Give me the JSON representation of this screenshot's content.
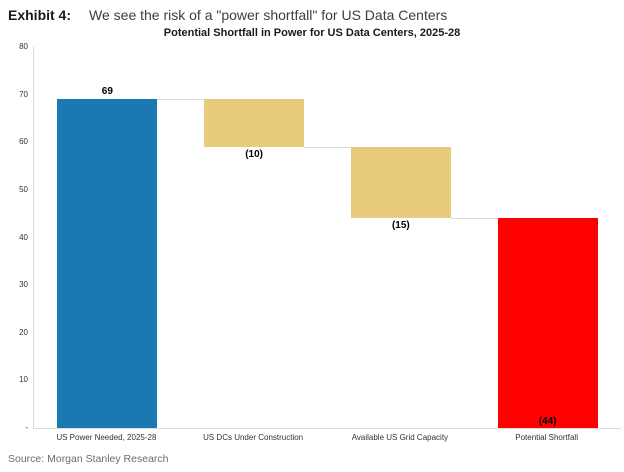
{
  "header": {
    "exhibit_label": "Exhibit 4:",
    "title": "We see the risk of a \"power shortfall\" for US Data Centers"
  },
  "chart_data": {
    "type": "bar",
    "subtype": "waterfall",
    "title": "Potential Shortfall in Power for US Data Centers, 2025-28",
    "categories": [
      "US Power Needed, 2025-28",
      "US DCs Under Construction",
      "Available US Grid Capacity",
      "Potential Shortfall"
    ],
    "values": [
      69,
      -10,
      -15,
      -44
    ],
    "running_levels": [
      [
        0,
        69
      ],
      [
        69,
        59
      ],
      [
        59,
        44
      ],
      [
        44,
        0
      ]
    ],
    "value_labels": [
      "69",
      "(10)",
      "(15)",
      "(44)"
    ],
    "value_label_positions": [
      "above",
      "below",
      "below",
      "inside-bottom"
    ],
    "bar_colors": [
      "#1B79B2",
      "#E9CB7D",
      "#E9CB7D",
      "#FE0000"
    ],
    "ylim": [
      0,
      80
    ],
    "yticks": [
      {
        "value": 0,
        "label": "-"
      },
      {
        "value": 10,
        "label": "10"
      },
      {
        "value": 20,
        "label": "20"
      },
      {
        "value": 30,
        "label": "30"
      },
      {
        "value": 40,
        "label": "40"
      },
      {
        "value": 50,
        "label": "50"
      },
      {
        "value": 60,
        "label": "60"
      },
      {
        "value": 70,
        "label": "70"
      },
      {
        "value": 80,
        "label": "80"
      }
    ],
    "grid": false,
    "legend": "none",
    "connector_color": "#D9D9D9",
    "axis_color": "#D9D9D9"
  },
  "footer": {
    "source": "Source: Morgan Stanley Research"
  }
}
